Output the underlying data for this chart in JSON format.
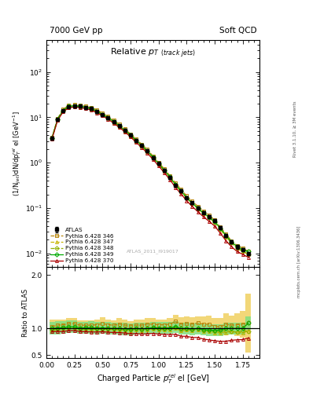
{
  "title_main": "Relative p$_{T}$ $_{(track jets)}$",
  "title_top_left": "7000 GeV pp",
  "title_top_right": "Soft QCD",
  "xlabel": "Charged Particle $p^{rel}_{T}$ el [GeV]",
  "ylabel_main": "(1/N$_{jet}$)dN/dp$^{rel}_{T}$ el [GeV$^{-1}$]",
  "ylabel_ratio": "Ratio to ATLAS",
  "right_label_top": "Rivet 3.1.10, ≥ 3M events",
  "right_label_bot": "mcplots.cern.ch [arXiv:1306.3436]",
  "watermark": "ATLAS_2011_I919017",
  "xlim": [
    0.0,
    1.9
  ],
  "ylim_main": [
    0.005,
    500
  ],
  "ylim_ratio": [
    0.45,
    2.15
  ],
  "xdata": [
    0.05,
    0.1,
    0.15,
    0.2,
    0.25,
    0.3,
    0.35,
    0.4,
    0.45,
    0.5,
    0.55,
    0.6,
    0.65,
    0.7,
    0.75,
    0.8,
    0.85,
    0.9,
    0.95,
    1.0,
    1.05,
    1.1,
    1.15,
    1.2,
    1.25,
    1.3,
    1.35,
    1.4,
    1.45,
    1.5,
    1.55,
    1.6,
    1.65,
    1.7,
    1.75,
    1.8
  ],
  "atlas_y": [
    3.5,
    9.0,
    14.0,
    17.0,
    17.5,
    17.5,
    16.5,
    15.5,
    13.5,
    11.5,
    9.8,
    8.0,
    6.5,
    5.2,
    4.1,
    3.1,
    2.4,
    1.8,
    1.3,
    0.95,
    0.68,
    0.48,
    0.32,
    0.24,
    0.17,
    0.13,
    0.1,
    0.08,
    0.065,
    0.052,
    0.037,
    0.025,
    0.018,
    0.014,
    0.012,
    0.01
  ],
  "atlas_yerr": [
    0.3,
    0.5,
    0.8,
    0.9,
    0.9,
    0.9,
    0.8,
    0.8,
    0.7,
    0.6,
    0.5,
    0.4,
    0.35,
    0.28,
    0.22,
    0.17,
    0.13,
    0.1,
    0.08,
    0.06,
    0.04,
    0.03,
    0.02,
    0.016,
    0.012,
    0.009,
    0.007,
    0.006,
    0.005,
    0.004,
    0.003,
    0.002,
    0.0015,
    0.0012,
    0.001,
    0.0009
  ],
  "py346_y": [
    3.6,
    9.5,
    15.0,
    18.5,
    19.0,
    18.5,
    17.5,
    16.5,
    14.5,
    12.5,
    10.5,
    8.5,
    7.0,
    5.5,
    4.3,
    3.3,
    2.55,
    1.95,
    1.4,
    1.02,
    0.73,
    0.52,
    0.36,
    0.26,
    0.185,
    0.14,
    0.11,
    0.086,
    0.07,
    0.054,
    0.038,
    0.027,
    0.019,
    0.015,
    0.013,
    0.011
  ],
  "py347_y": [
    3.4,
    8.8,
    13.8,
    17.0,
    17.5,
    17.2,
    16.2,
    15.2,
    13.2,
    11.3,
    9.6,
    7.8,
    6.3,
    5.0,
    3.95,
    3.0,
    2.3,
    1.75,
    1.28,
    0.93,
    0.66,
    0.47,
    0.32,
    0.23,
    0.165,
    0.125,
    0.097,
    0.075,
    0.061,
    0.048,
    0.034,
    0.023,
    0.017,
    0.013,
    0.011,
    0.0095
  ],
  "py348_y": [
    3.4,
    8.9,
    14.0,
    17.2,
    17.7,
    17.4,
    16.4,
    15.4,
    13.4,
    11.4,
    9.7,
    7.9,
    6.4,
    5.1,
    4.0,
    3.05,
    2.35,
    1.78,
    1.3,
    0.945,
    0.675,
    0.48,
    0.325,
    0.235,
    0.168,
    0.127,
    0.099,
    0.077,
    0.062,
    0.049,
    0.035,
    0.024,
    0.017,
    0.013,
    0.0115,
    0.0095
  ],
  "py349_y": [
    3.5,
    9.1,
    14.2,
    17.5,
    18.0,
    17.7,
    16.7,
    15.7,
    13.6,
    11.6,
    9.85,
    8.0,
    6.5,
    5.15,
    4.05,
    3.1,
    2.38,
    1.8,
    1.32,
    0.96,
    0.685,
    0.485,
    0.33,
    0.24,
    0.17,
    0.128,
    0.1,
    0.078,
    0.063,
    0.05,
    0.036,
    0.025,
    0.018,
    0.014,
    0.012,
    0.011
  ],
  "py370_y": [
    3.3,
    8.5,
    13.2,
    16.3,
    16.8,
    16.5,
    15.5,
    14.5,
    12.6,
    10.8,
    9.1,
    7.4,
    6.0,
    4.75,
    3.7,
    2.8,
    2.15,
    1.62,
    1.18,
    0.85,
    0.605,
    0.425,
    0.285,
    0.205,
    0.145,
    0.108,
    0.083,
    0.064,
    0.051,
    0.04,
    0.028,
    0.019,
    0.014,
    0.011,
    0.0095,
    0.0082
  ],
  "color_346": "#b8860b",
  "color_347": "#c8b400",
  "color_348": "#90b000",
  "color_349": "#00aa00",
  "color_370": "#aa0000",
  "color_atlas": "#000000",
  "band_346_color": "#f0d060",
  "band_349_color": "#80e080",
  "ratio_346": [
    1.03,
    1.06,
    1.07,
    1.09,
    1.09,
    1.06,
    1.06,
    1.06,
    1.07,
    1.09,
    1.07,
    1.06,
    1.08,
    1.06,
    1.05,
    1.06,
    1.06,
    1.08,
    1.08,
    1.07,
    1.07,
    1.08,
    1.13,
    1.08,
    1.09,
    1.08,
    1.1,
    1.08,
    1.08,
    1.04,
    1.03,
    1.08,
    1.06,
    1.07,
    1.08,
    1.1
  ],
  "ratio_347": [
    0.97,
    0.98,
    0.99,
    1.0,
    1.0,
    0.98,
    0.98,
    0.98,
    0.98,
    0.98,
    0.98,
    0.975,
    0.97,
    0.96,
    0.963,
    0.97,
    0.958,
    0.972,
    0.985,
    0.979,
    0.97,
    0.979,
    1.0,
    0.96,
    0.97,
    0.962,
    0.97,
    0.94,
    0.94,
    0.923,
    0.919,
    0.92,
    0.944,
    0.929,
    0.917,
    0.95
  ],
  "ratio_348": [
    0.97,
    0.99,
    1.0,
    1.01,
    1.01,
    0.994,
    0.994,
    0.994,
    0.993,
    0.991,
    0.99,
    0.988,
    0.985,
    0.981,
    0.976,
    0.984,
    0.979,
    0.989,
    1.0,
    0.995,
    0.993,
    1.0,
    1.016,
    0.979,
    0.988,
    0.977,
    0.99,
    0.963,
    0.954,
    0.942,
    0.946,
    0.96,
    0.944,
    0.929,
    0.958,
    0.95
  ],
  "ratio_349": [
    1.0,
    1.01,
    1.014,
    1.029,
    1.029,
    1.011,
    1.012,
    1.013,
    1.007,
    1.009,
    1.005,
    1.0,
    1.0,
    0.99,
    0.988,
    1.0,
    0.992,
    1.0,
    1.015,
    1.011,
    1.007,
    1.01,
    1.031,
    1.0,
    1.0,
    0.985,
    1.0,
    0.975,
    0.969,
    0.962,
    0.973,
    1.0,
    1.0,
    1.0,
    1.0,
    1.1
  ],
  "ratio_370": [
    0.94,
    0.944,
    0.943,
    0.959,
    0.96,
    0.943,
    0.939,
    0.935,
    0.933,
    0.939,
    0.929,
    0.925,
    0.923,
    0.913,
    0.902,
    0.903,
    0.896,
    0.9,
    0.908,
    0.895,
    0.89,
    0.885,
    0.891,
    0.854,
    0.853,
    0.831,
    0.83,
    0.8,
    0.785,
    0.769,
    0.757,
    0.76,
    0.778,
    0.786,
    0.792,
    0.82
  ],
  "ratio_band_346_lo": [
    0.9,
    0.95,
    0.97,
    0.99,
    0.99,
    0.97,
    0.97,
    0.97,
    0.97,
    0.97,
    0.97,
    0.97,
    0.97,
    0.96,
    0.96,
    0.96,
    0.96,
    0.97,
    0.97,
    0.97,
    0.97,
    0.97,
    1.0,
    0.95,
    0.95,
    0.95,
    0.97,
    0.93,
    0.92,
    0.88,
    0.87,
    0.87,
    0.88,
    0.85,
    0.83,
    0.55
  ],
  "ratio_band_346_hi": [
    1.16,
    1.17,
    1.17,
    1.19,
    1.19,
    1.15,
    1.15,
    1.15,
    1.17,
    1.21,
    1.17,
    1.15,
    1.19,
    1.16,
    1.14,
    1.16,
    1.16,
    1.19,
    1.19,
    1.17,
    1.17,
    1.19,
    1.26,
    1.21,
    1.23,
    1.21,
    1.23,
    1.23,
    1.24,
    1.2,
    1.19,
    1.29,
    1.24,
    1.29,
    1.33,
    1.65
  ],
  "ratio_band_349_lo": [
    0.88,
    0.89,
    0.895,
    0.91,
    0.91,
    0.895,
    0.895,
    0.896,
    0.893,
    0.895,
    0.891,
    0.887,
    0.886,
    0.879,
    0.877,
    0.888,
    0.88,
    0.888,
    0.903,
    0.899,
    0.895,
    0.899,
    0.919,
    0.888,
    0.888,
    0.874,
    0.888,
    0.865,
    0.86,
    0.853,
    0.864,
    0.888,
    0.888,
    0.888,
    0.888,
    0.98
  ],
  "ratio_band_349_hi": [
    1.12,
    1.13,
    1.133,
    1.147,
    1.147,
    1.127,
    1.129,
    1.13,
    1.121,
    1.123,
    1.119,
    1.113,
    1.114,
    1.101,
    1.099,
    1.112,
    1.104,
    1.112,
    1.127,
    1.123,
    1.119,
    1.121,
    1.143,
    1.112,
    1.112,
    1.096,
    1.112,
    1.085,
    1.078,
    1.071,
    1.082,
    1.112,
    1.112,
    1.112,
    1.112,
    1.22
  ]
}
